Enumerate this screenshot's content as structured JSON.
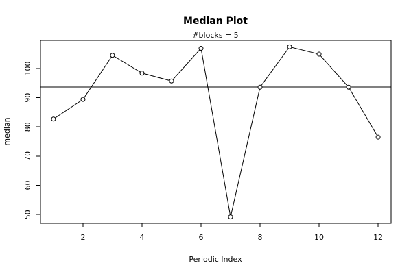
{
  "chart_data": {
    "type": "line",
    "title": "Median Plot",
    "subtitle": "#blocks =  5",
    "xlabel": "Periodic Index",
    "ylabel": "median",
    "x": [
      1,
      2,
      3,
      4,
      5,
      6,
      7,
      8,
      9,
      10,
      11,
      12
    ],
    "values": [
      82.7,
      89.4,
      104.5,
      98.4,
      95.7,
      106.9,
      49.2,
      93.6,
      107.4,
      104.9,
      93.6,
      76.5
    ],
    "reference_line": 93.6,
    "xlim": [
      0.56,
      12.44
    ],
    "ylim": [
      47.0,
      109.6
    ],
    "x_ticks": [
      2,
      4,
      6,
      8,
      10,
      12
    ],
    "y_ticks": [
      50,
      60,
      70,
      80,
      90,
      100
    ],
    "grid": false,
    "legend": "none",
    "marker": "open-circle",
    "line_color": "#000000",
    "background": "#ffffff"
  }
}
